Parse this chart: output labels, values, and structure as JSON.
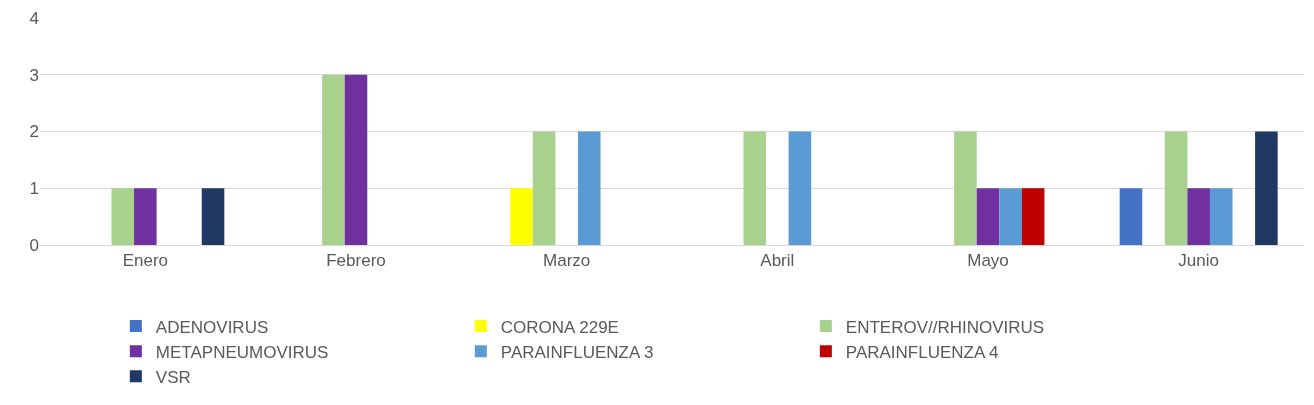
{
  "chart_data": {
    "type": "bar",
    "categories": [
      "Enero",
      "Febrero",
      "Marzo",
      "Abril",
      "Mayo",
      "Junio"
    ],
    "series": [
      {
        "name": "ADENOVIRUS",
        "color": "#4472c4",
        "values": [
          0,
          0,
          0,
          0,
          0,
          1
        ]
      },
      {
        "name": "CORONA 229E",
        "color": "#ffff00",
        "values": [
          0,
          0,
          1,
          0,
          0,
          0
        ]
      },
      {
        "name": "ENTEROV//RHINOVIRUS",
        "color": "#a9d18e",
        "values": [
          1,
          3,
          2,
          2,
          2,
          2
        ]
      },
      {
        "name": "METAPNEUMOVIRUS",
        "color": "#7030a0",
        "values": [
          1,
          3,
          0,
          0,
          1,
          1
        ]
      },
      {
        "name": "PARAINFLUENZA 3",
        "color": "#5b9bd5",
        "values": [
          0,
          0,
          2,
          2,
          1,
          1
        ]
      },
      {
        "name": "PARAINFLUENZA 4",
        "color": "#c00000",
        "values": [
          0,
          0,
          0,
          0,
          1,
          0
        ]
      },
      {
        "name": "VSR",
        "color": "#203864",
        "values": [
          1,
          0,
          0,
          0,
          0,
          2
        ]
      }
    ],
    "ylim": [
      0,
      4
    ],
    "yticks": [
      0,
      1,
      2,
      3,
      4
    ],
    "grid": "y",
    "legend": "bottom"
  }
}
